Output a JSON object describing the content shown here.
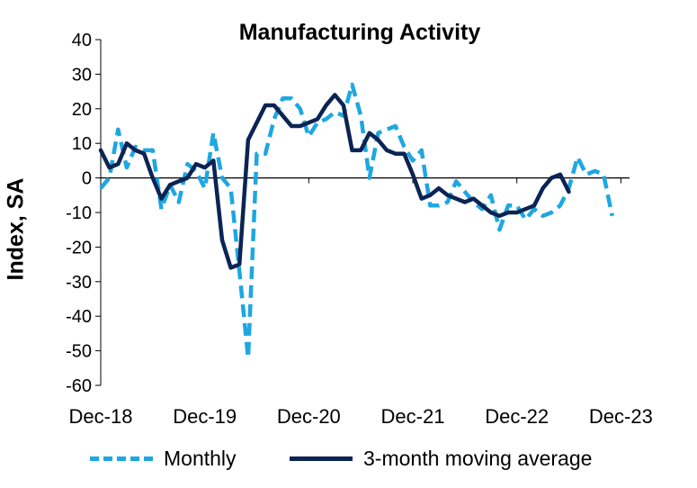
{
  "chart_data": {
    "type": "line",
    "title": "Manufacturing Activity",
    "xlabel": "",
    "ylabel": "Index, SA",
    "ylim": [
      -60,
      40
    ],
    "yticks": [
      40,
      30,
      20,
      10,
      0,
      -10,
      -20,
      -30,
      -40,
      -50,
      -60
    ],
    "x_tick_labels": [
      "Dec-18",
      "Dec-19",
      "Dec-20",
      "Dec-21",
      "Dec-22",
      "Dec-23"
    ],
    "x_tick_months": [
      0,
      12,
      24,
      36,
      48,
      60
    ],
    "x_range_months": [
      0,
      61
    ],
    "series": [
      {
        "name": "Monthly",
        "color": "#1ea7e1",
        "style": "dashed",
        "values": [
          -3,
          0,
          14,
          3,
          9,
          8,
          8,
          -9,
          -2,
          -7,
          4,
          2,
          -3,
          13,
          0,
          -3,
          -27,
          -52,
          7,
          7,
          17,
          23,
          23,
          20,
          12,
          16,
          17,
          19,
          18,
          27,
          18,
          0,
          13,
          14,
          15,
          9,
          5,
          8,
          -8,
          -8,
          -7,
          -1,
          -4,
          -7,
          -9,
          -5,
          -15,
          -8,
          -8,
          -12,
          -9,
          -11,
          -10,
          -8,
          -3,
          6,
          1,
          2,
          1,
          -11
        ]
      },
      {
        "name": "3-month moving average",
        "color": "#0b2454",
        "style": "solid",
        "values": [
          8,
          3,
          4,
          10,
          8,
          7,
          0,
          -6,
          -2,
          -1,
          0,
          4,
          3,
          5,
          -18,
          -26,
          -25,
          11,
          16,
          21,
          21,
          18,
          15,
          15,
          16,
          17,
          21,
          24,
          21,
          8,
          8,
          13,
          11,
          8,
          7,
          7,
          1,
          -6,
          -5,
          -3,
          -5,
          -6,
          -7,
          -6,
          -8,
          -10,
          -11,
          -10,
          -10,
          -9,
          -8,
          -3,
          0,
          1,
          -4
        ]
      }
    ],
    "ma_start_month": 0,
    "grid": false,
    "legend_position": "bottom"
  }
}
